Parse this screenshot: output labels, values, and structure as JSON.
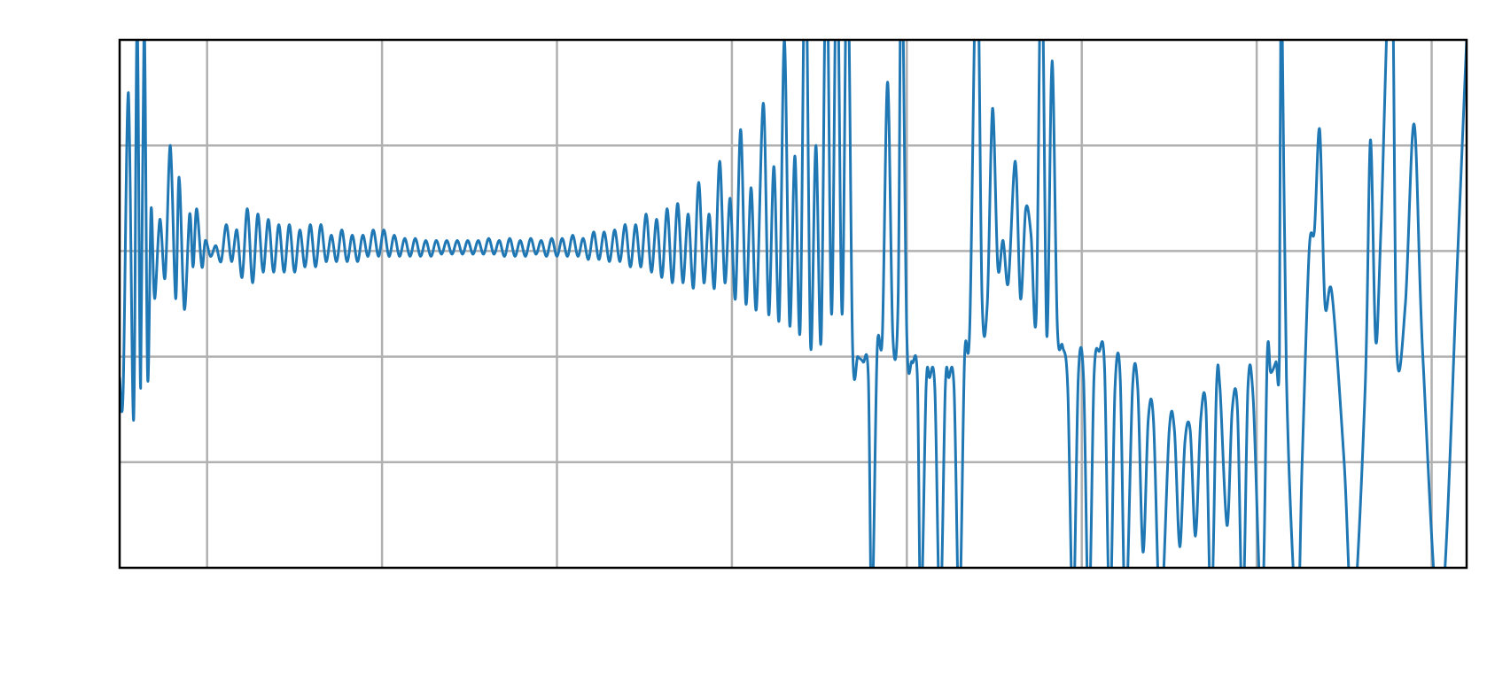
{
  "chart_data": {
    "type": "line",
    "title": "",
    "xlabel": "",
    "ylabel": "",
    "xlim": [
      0,
      7.7
    ],
    "ylim": [
      -3,
      2
    ],
    "x_gridlines": [
      0.5,
      1.5,
      2.5,
      3.5,
      4.5,
      5.5,
      6.5,
      7.5
    ],
    "y_gridlines": [
      -2,
      -1,
      0,
      1
    ],
    "grid": true,
    "legend": "none",
    "colors": {
      "series": "#1f77b4",
      "grid": "#b0b0b0",
      "frame": "#000000"
    },
    "series": [
      {
        "color": "#1f77b4",
        "points": [
          [
            0.0,
            -1.2
          ],
          [
            0.02,
            -1.35
          ],
          [
            0.05,
            1.5
          ],
          [
            0.08,
            -1.6
          ],
          [
            0.1,
            2.2
          ],
          [
            0.12,
            -1.3
          ],
          [
            0.14,
            2.2
          ],
          [
            0.16,
            -1.2
          ],
          [
            0.18,
            0.4
          ],
          [
            0.2,
            -0.45
          ],
          [
            0.23,
            0.3
          ],
          [
            0.26,
            -0.25
          ],
          [
            0.29,
            1.0
          ],
          [
            0.32,
            -0.45
          ],
          [
            0.34,
            0.7
          ],
          [
            0.37,
            -0.55
          ],
          [
            0.4,
            0.35
          ],
          [
            0.42,
            -0.15
          ],
          [
            0.44,
            0.4
          ],
          [
            0.47,
            -0.15
          ],
          [
            0.49,
            0.1
          ],
          [
            0.52,
            -0.05
          ],
          [
            0.55,
            0.05
          ],
          [
            0.58,
            -0.1
          ],
          [
            0.61,
            0.25
          ],
          [
            0.64,
            -0.1
          ],
          [
            0.67,
            0.2
          ],
          [
            0.7,
            -0.25
          ],
          [
            0.73,
            0.4
          ],
          [
            0.76,
            -0.3
          ],
          [
            0.79,
            0.35
          ],
          [
            0.82,
            -0.2
          ],
          [
            0.85,
            0.3
          ],
          [
            0.88,
            -0.2
          ],
          [
            0.91,
            0.25
          ],
          [
            0.94,
            -0.2
          ],
          [
            0.97,
            0.25
          ],
          [
            1.0,
            -0.2
          ],
          [
            1.03,
            0.2
          ],
          [
            1.06,
            -0.15
          ],
          [
            1.09,
            0.25
          ],
          [
            1.12,
            -0.15
          ],
          [
            1.15,
            0.25
          ],
          [
            1.18,
            -0.1
          ],
          [
            1.21,
            0.15
          ],
          [
            1.24,
            -0.1
          ],
          [
            1.27,
            0.2
          ],
          [
            1.3,
            -0.1
          ],
          [
            1.33,
            0.15
          ],
          [
            1.36,
            -0.1
          ],
          [
            1.39,
            0.15
          ],
          [
            1.42,
            -0.05
          ],
          [
            1.45,
            0.2
          ],
          [
            1.48,
            -0.05
          ],
          [
            1.51,
            0.2
          ],
          [
            1.54,
            -0.05
          ],
          [
            1.57,
            0.15
          ],
          [
            1.6,
            -0.05
          ],
          [
            1.63,
            0.12
          ],
          [
            1.66,
            -0.05
          ],
          [
            1.69,
            0.12
          ],
          [
            1.72,
            -0.05
          ],
          [
            1.75,
            0.1
          ],
          [
            1.78,
            -0.05
          ],
          [
            1.81,
            0.1
          ],
          [
            1.84,
            -0.03
          ],
          [
            1.87,
            0.1
          ],
          [
            1.9,
            -0.03
          ],
          [
            1.93,
            0.1
          ],
          [
            1.96,
            -0.03
          ],
          [
            1.99,
            0.1
          ],
          [
            2.02,
            -0.03
          ],
          [
            2.05,
            0.1
          ],
          [
            2.08,
            -0.03
          ],
          [
            2.11,
            0.12
          ],
          [
            2.14,
            -0.03
          ],
          [
            2.17,
            0.1
          ],
          [
            2.2,
            -0.05
          ],
          [
            2.23,
            0.12
          ],
          [
            2.26,
            -0.05
          ],
          [
            2.29,
            0.1
          ],
          [
            2.32,
            -0.05
          ],
          [
            2.35,
            0.12
          ],
          [
            2.38,
            -0.03
          ],
          [
            2.41,
            0.1
          ],
          [
            2.44,
            -0.05
          ],
          [
            2.47,
            0.12
          ],
          [
            2.5,
            -0.05
          ],
          [
            2.53,
            0.12
          ],
          [
            2.56,
            -0.05
          ],
          [
            2.59,
            0.15
          ],
          [
            2.62,
            -0.05
          ],
          [
            2.65,
            0.12
          ],
          [
            2.68,
            -0.08
          ],
          [
            2.71,
            0.18
          ],
          [
            2.74,
            -0.08
          ],
          [
            2.77,
            0.18
          ],
          [
            2.8,
            -0.1
          ],
          [
            2.83,
            0.2
          ],
          [
            2.86,
            -0.1
          ],
          [
            2.89,
            0.25
          ],
          [
            2.92,
            -0.15
          ],
          [
            2.95,
            0.25
          ],
          [
            2.98,
            -0.15
          ],
          [
            3.01,
            0.35
          ],
          [
            3.04,
            -0.2
          ],
          [
            3.07,
            0.3
          ],
          [
            3.1,
            -0.25
          ],
          [
            3.13,
            0.4
          ],
          [
            3.16,
            -0.3
          ],
          [
            3.19,
            0.45
          ],
          [
            3.22,
            -0.3
          ],
          [
            3.25,
            0.35
          ],
          [
            3.28,
            -0.35
          ],
          [
            3.31,
            0.65
          ],
          [
            3.34,
            -0.3
          ],
          [
            3.37,
            0.35
          ],
          [
            3.4,
            -0.35
          ],
          [
            3.43,
            0.85
          ],
          [
            3.46,
            -0.3
          ],
          [
            3.49,
            0.5
          ],
          [
            3.52,
            -0.45
          ],
          [
            3.55,
            1.15
          ],
          [
            3.58,
            -0.5
          ],
          [
            3.61,
            0.6
          ],
          [
            3.64,
            -0.55
          ],
          [
            3.68,
            1.4
          ],
          [
            3.71,
            -0.6
          ],
          [
            3.74,
            0.8
          ],
          [
            3.77,
            -0.65
          ],
          [
            3.8,
            2.0
          ],
          [
            3.83,
            -0.7
          ],
          [
            3.86,
            0.9
          ],
          [
            3.89,
            -0.75
          ],
          [
            3.92,
            3.0
          ],
          [
            3.95,
            -0.9
          ],
          [
            3.98,
            1.0
          ],
          [
            4.01,
            -0.85
          ],
          [
            4.04,
            3.0
          ],
          [
            4.07,
            -0.6
          ],
          [
            4.1,
            3.0
          ],
          [
            4.13,
            -0.6
          ],
          [
            4.16,
            3.0
          ],
          [
            4.19,
            -0.9
          ],
          [
            4.22,
            -1.0
          ],
          [
            4.25,
            -1.05
          ],
          [
            4.28,
            -1.2
          ],
          [
            4.3,
            -3.5
          ],
          [
            4.33,
            -0.95
          ],
          [
            4.36,
            -0.8
          ],
          [
            4.39,
            1.6
          ],
          [
            4.42,
            -0.8
          ],
          [
            4.45,
            -0.5
          ],
          [
            4.47,
            3.0
          ],
          [
            4.5,
            -0.8
          ],
          [
            4.53,
            -1.05
          ],
          [
            4.56,
            -1.2
          ],
          [
            4.58,
            -3.5
          ],
          [
            4.61,
            -1.3
          ],
          [
            4.63,
            -1.2
          ],
          [
            4.66,
            -1.3
          ],
          [
            4.69,
            -3.5
          ],
          [
            4.72,
            -1.3
          ],
          [
            4.74,
            -1.2
          ],
          [
            4.77,
            -1.3
          ],
          [
            4.8,
            -3.5
          ],
          [
            4.83,
            -1.0
          ],
          [
            4.86,
            -0.7
          ],
          [
            4.9,
            3.0
          ],
          [
            4.93,
            -0.45
          ],
          [
            4.96,
            -0.5
          ],
          [
            4.99,
            1.35
          ],
          [
            5.02,
            -0.15
          ],
          [
            5.05,
            0.1
          ],
          [
            5.08,
            -0.3
          ],
          [
            5.12,
            0.85
          ],
          [
            5.15,
            -0.45
          ],
          [
            5.18,
            0.4
          ],
          [
            5.21,
            0.15
          ],
          [
            5.24,
            -0.6
          ],
          [
            5.27,
            3.0
          ],
          [
            5.3,
            -0.8
          ],
          [
            5.33,
            1.8
          ],
          [
            5.36,
            -0.7
          ],
          [
            5.39,
            -0.9
          ],
          [
            5.42,
            -1.3
          ],
          [
            5.45,
            -3.5
          ],
          [
            5.48,
            -1.2
          ],
          [
            5.51,
            -1.2
          ],
          [
            5.54,
            -3.5
          ],
          [
            5.57,
            -1.2
          ],
          [
            5.6,
            -0.95
          ],
          [
            5.63,
            -1.1
          ],
          [
            5.66,
            -3.5
          ],
          [
            5.69,
            -1.3
          ],
          [
            5.72,
            -1.2
          ],
          [
            5.75,
            -3.5
          ],
          [
            5.79,
            -1.3
          ],
          [
            5.82,
            -1.3
          ],
          [
            5.85,
            -2.85
          ],
          [
            5.88,
            -1.6
          ],
          [
            5.91,
            -1.6
          ],
          [
            5.95,
            -3.5
          ],
          [
            6.0,
            -1.7
          ],
          [
            6.03,
            -1.7
          ],
          [
            6.06,
            -2.8
          ],
          [
            6.09,
            -1.8
          ],
          [
            6.12,
            -1.7
          ],
          [
            6.15,
            -2.7
          ],
          [
            6.18,
            -1.6
          ],
          [
            6.21,
            -1.5
          ],
          [
            6.24,
            -3.5
          ],
          [
            6.27,
            -1.3
          ],
          [
            6.29,
            -1.3
          ],
          [
            6.33,
            -2.6
          ],
          [
            6.36,
            -1.5
          ],
          [
            6.39,
            -1.5
          ],
          [
            6.42,
            -3.5
          ],
          [
            6.45,
            -1.3
          ],
          [
            6.48,
            -1.4
          ],
          [
            6.53,
            -3.5
          ],
          [
            6.56,
            -1.0
          ],
          [
            6.58,
            -1.15
          ],
          [
            6.61,
            -1.05
          ],
          [
            6.63,
            -0.95
          ],
          [
            6.64,
            3.0
          ],
          [
            6.67,
            -1.2
          ],
          [
            6.73,
            -3.5
          ],
          [
            6.76,
            -2.0
          ],
          [
            6.8,
            0.0
          ],
          [
            6.83,
            0.2
          ],
          [
            6.86,
            1.15
          ],
          [
            6.89,
            -0.5
          ],
          [
            6.93,
            -0.4
          ],
          [
            7.0,
            -2.0
          ],
          [
            7.05,
            -3.5
          ],
          [
            7.12,
            -1.3
          ],
          [
            7.15,
            1.05
          ],
          [
            7.18,
            -0.85
          ],
          [
            7.21,
            0.2
          ],
          [
            7.27,
            3.0
          ],
          [
            7.3,
            -0.9
          ],
          [
            7.35,
            -0.5
          ],
          [
            7.4,
            1.2
          ],
          [
            7.45,
            -1.0
          ],
          [
            7.55,
            -3.5
          ],
          [
            7.65,
            0.0
          ],
          [
            7.7,
            2.0
          ]
        ]
      }
    ]
  }
}
